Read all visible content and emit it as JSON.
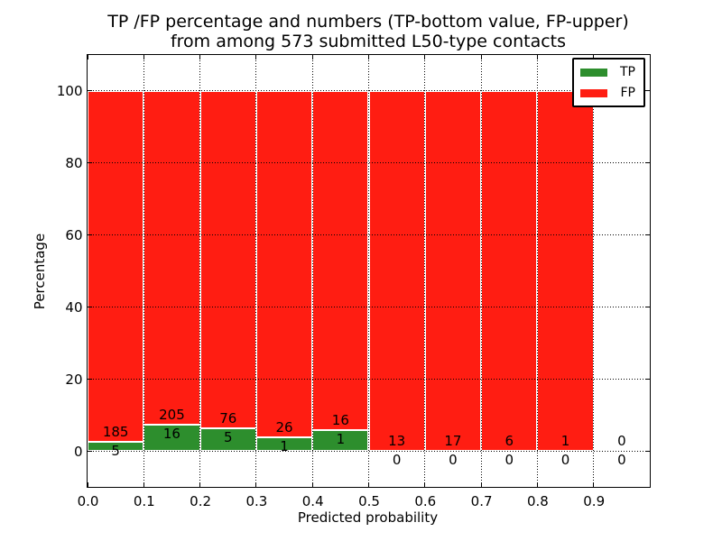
{
  "chart_data": {
    "type": "bar",
    "stacked": true,
    "normalized_to_percent": true,
    "title_lines": [
      "TP /FP percentage and numbers (TP-bottom value, FP-upper)",
      "from among 573 submitted L50-type contacts"
    ],
    "xlabel": "Predicted probability",
    "ylabel": "Percentage",
    "xlim": [
      0.0,
      1.0
    ],
    "ylim": [
      -10,
      110
    ],
    "x_tick_labels": [
      "0.0",
      "0.1",
      "0.2",
      "0.3",
      "0.4",
      "0.5",
      "0.6",
      "0.7",
      "0.8",
      "0.9"
    ],
    "y_tick_values": [
      0,
      20,
      40,
      60,
      80,
      100
    ],
    "bin_edges": [
      0.0,
      0.1,
      0.2,
      0.3,
      0.4,
      0.5,
      0.6,
      0.7,
      0.8,
      0.9,
      1.0
    ],
    "series": [
      {
        "name": "TP",
        "color": "#2d8e2d",
        "values": [
          5,
          16,
          5,
          1,
          1,
          0,
          0,
          0,
          0,
          0
        ]
      },
      {
        "name": "FP",
        "color": "#ff1d12",
        "values": [
          185,
          205,
          76,
          26,
          16,
          13,
          17,
          6,
          1,
          0
        ]
      }
    ],
    "legend_position": "upper right",
    "grid": "dotted",
    "bar_edge_color": "#ffffff",
    "text_color": "#000000",
    "background_color": "#ffffff"
  }
}
